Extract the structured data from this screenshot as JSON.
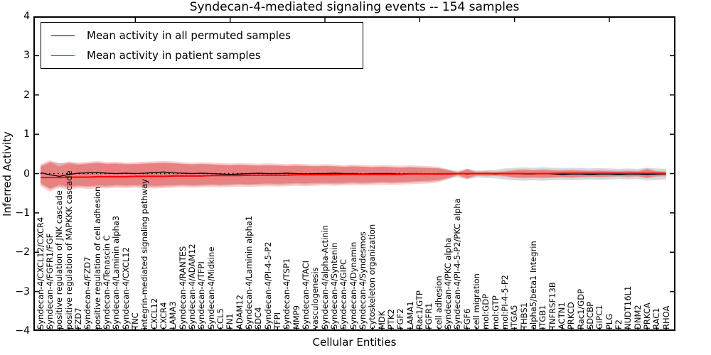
{
  "title": "Syndecan-4-mediated signaling events -- 154 samples",
  "axes": {
    "xlabel": "Cellular Entities",
    "ylabel": "Inferred Activity"
  },
  "legend": {
    "items": [
      {
        "label": "Mean activity in all permuted samples",
        "color": "#000000"
      },
      {
        "label": "Mean activity in patient samples",
        "color": "#ff0000"
      }
    ]
  },
  "colors": {
    "patient_line": "#ff0000",
    "permuted_line": "#000000",
    "patient_band": "#ff0000",
    "permuted_band": "#808080",
    "axes_frame": "#000000",
    "background": "#ffffff"
  },
  "chart_data": {
    "type": "line",
    "title": "Syndecan-4-mediated signaling events -- 154 samples",
    "xlabel": "Cellular Entities",
    "ylabel": "Inferred Activity",
    "ylim": [
      -4,
      4
    ],
    "yticks": [
      4,
      3,
      2,
      1,
      0,
      -1,
      -2,
      -3,
      -4
    ],
    "grid": false,
    "legend_position": "upper left",
    "zero_line": 0,
    "categories": [
      "Syndecan-4/CXCL12/CXCR4",
      "Syndecan-4/FGFR1/FGF",
      "positive regulation of JNK cascade",
      "positive regulation of MAPKKK cascade",
      "FZD7",
      "Syndecan-4/FZD7",
      "positive regulation of cell adhesion",
      "Syndecan-4/Tenascin C",
      "Syndecan-4/Laminin alpha3",
      "Syndecan-4/CXCL12",
      "TNC",
      "integrin-mediated signaling pathway",
      "CXCL12",
      "CXCR4",
      "LAMA3",
      "Syndecan-4/RANTES",
      "Syndecan-4/ADAM12",
      "Syndecan-4/TFPI",
      "Syndecan-4/Midkine",
      "CCL5",
      "FN1",
      "ADAM12",
      "Syndecan-4/Laminin alpha1",
      "SDC4",
      "Syndecan-4/PI-4-5-P2",
      "TFPI",
      "Syndecan-4/TSP1",
      "MMP9",
      "Syndecan-4/TACI",
      "vasculogenesis",
      "Syndecan-4/alpha-Actinin",
      "Syndecan-4/Syntenin",
      "Syndecan-4/GIPC",
      "Syndecan-4/Dynamin",
      "Syndecan-4/Syndesmos",
      "cytoskeleton organization",
      "MDK",
      "PTK2",
      "FGF2",
      "LAMA1",
      "Rac1/GTP",
      "FGFR1",
      "cell adhesion",
      "Syndecan-4/PKC alpha",
      "Syndecan-4/PI-4-5-P2/PKC alpha",
      "FGF6",
      "cell migration",
      "mol:GDP",
      "mol:GTP",
      "mol:PI-4-5-P2",
      "ITGA5",
      "THBS1",
      "alpha5/beta1 Integrin",
      "ITGB1",
      "TNFRSF13B",
      "ACTN1",
      "PRKCD",
      "Rac1/GDP",
      "SDCBP",
      "GIPC1",
      "PLG",
      "F2",
      "NUDT16L1",
      "DNM2",
      "PRKCA",
      "RAC1",
      "RHOA"
    ],
    "series": [
      {
        "name": "Mean activity in all permuted samples",
        "color": "#000000",
        "style": "solid",
        "width": 1.3,
        "values": [
          0.02,
          -0.03,
          -0.07,
          -0.02,
          0.01,
          0.02,
          0.03,
          0.01,
          0,
          0.01,
          0,
          0.01,
          0.03,
          0.04,
          0.02,
          0.01,
          0,
          0.01,
          0,
          -0.01,
          -0.02,
          -0.01,
          0,
          0.01,
          0,
          0,
          0.01,
          0,
          -0.01,
          0,
          0,
          0.01,
          0,
          0,
          -0.01,
          0,
          0,
          0,
          -0.01,
          0,
          0,
          -0.01,
          0,
          0,
          0,
          -0.01,
          0,
          0,
          -0.01,
          0,
          0,
          -0.01,
          -0.01,
          0,
          -0.01,
          -0.02,
          -0.01,
          -0.01,
          -0.02,
          -0.01,
          -0.01,
          -0.02,
          -0.01,
          -0.01,
          -0.02,
          -0.01,
          -0.01
        ]
      },
      {
        "name": "Mean activity in patient samples",
        "color": "#ff0000",
        "style": "solid",
        "width": 2,
        "values": [
          -0.1,
          -0.1,
          -0.1,
          -0.09,
          -0.09,
          -0.09,
          -0.08,
          -0.08,
          -0.08,
          -0.08,
          -0.07,
          -0.07,
          -0.07,
          -0.07,
          -0.06,
          -0.06,
          -0.06,
          -0.06,
          -0.05,
          -0.05,
          -0.05,
          -0.05,
          -0.04,
          -0.04,
          -0.04,
          -0.04,
          -0.04,
          -0.03,
          -0.03,
          -0.03,
          -0.03,
          -0.03,
          -0.02,
          -0.02,
          -0.02,
          -0.02,
          -0.02,
          -0.02,
          -0.02,
          -0.01,
          -0.01,
          -0.01,
          -0.01,
          -0.01,
          0,
          0,
          0,
          0,
          0,
          0,
          0,
          0,
          0,
          0,
          0,
          0.01,
          0.01,
          0.01,
          0.01,
          0.01,
          0.01,
          0.01,
          0.01,
          0.01,
          0.01,
          0.01,
          0
        ]
      }
    ],
    "bands": [
      {
        "name": "permuted-samples-range",
        "color": "#808080",
        "alpha": 0.3,
        "upper": [
          0.2,
          0.3,
          0.27,
          0.28,
          0.25,
          0.26,
          0.28,
          0.26,
          0.26,
          0.25,
          0.25,
          0.26,
          0.27,
          0.28,
          0.27,
          0.25,
          0.24,
          0.25,
          0.24,
          0.23,
          0.22,
          0.23,
          0.22,
          0.21,
          0.22,
          0.21,
          0.2,
          0.21,
          0.2,
          0.19,
          0.2,
          0.19,
          0.18,
          0.19,
          0.18,
          0.17,
          0.18,
          0.17,
          0.16,
          0.17,
          0.16,
          0.15,
          0.14,
          0.1,
          0.07,
          0.12,
          0.08,
          0.09,
          0.1,
          0.13,
          0.15,
          0.16,
          0.15,
          0.16,
          0.15,
          0.14,
          0.15,
          0.14,
          0.13,
          0.14,
          0.13,
          0.12,
          0.13,
          0.12,
          0.15,
          0.13,
          0.12
        ],
        "lower": [
          -0.28,
          -0.4,
          -0.33,
          -0.36,
          -0.33,
          -0.34,
          -0.33,
          -0.34,
          -0.32,
          -0.33,
          -0.32,
          -0.33,
          -0.34,
          -0.33,
          -0.32,
          -0.31,
          -0.32,
          -0.31,
          -0.3,
          -0.31,
          -0.3,
          -0.29,
          -0.3,
          -0.29,
          -0.28,
          -0.29,
          -0.28,
          -0.27,
          -0.28,
          -0.27,
          -0.26,
          -0.27,
          -0.26,
          -0.25,
          -0.26,
          -0.25,
          -0.24,
          -0.25,
          -0.24,
          -0.23,
          -0.22,
          -0.21,
          -0.19,
          -0.13,
          -0.09,
          -0.14,
          -0.1,
          -0.11,
          -0.12,
          -0.15,
          -0.17,
          -0.18,
          -0.17,
          -0.18,
          -0.17,
          -0.16,
          -0.17,
          -0.16,
          -0.15,
          -0.16,
          -0.15,
          -0.14,
          -0.15,
          -0.14,
          -0.17,
          -0.16,
          -0.15
        ]
      },
      {
        "name": "patient-samples-range-outer",
        "color": "#ff0000",
        "alpha": 0.2,
        "upper": [
          0.24,
          0.34,
          0.25,
          0.31,
          0.28,
          0.3,
          0.32,
          0.29,
          0.3,
          0.28,
          0.29,
          0.3,
          0.31,
          0.32,
          0.31,
          0.29,
          0.28,
          0.29,
          0.28,
          0.27,
          0.26,
          0.27,
          0.26,
          0.25,
          0.26,
          0.25,
          0.24,
          0.25,
          0.24,
          0.23,
          0.24,
          0.23,
          0.22,
          0.23,
          0.22,
          0.21,
          0.22,
          0.21,
          0.2,
          0.21,
          0.2,
          0.19,
          0.17,
          0.11,
          0.04,
          0.13,
          0.05,
          0.06,
          0.05,
          0.07,
          0.1,
          0.11,
          0.1,
          0.11,
          0.1,
          0.09,
          0.1,
          0.09,
          0.08,
          0.09,
          0.08,
          0.07,
          0.08,
          0.07,
          0.13,
          0.07,
          0.06
        ],
        "lower": [
          -0.32,
          -0.46,
          -0.36,
          -0.41,
          -0.37,
          -0.39,
          -0.37,
          -0.38,
          -0.36,
          -0.37,
          -0.36,
          -0.37,
          -0.38,
          -0.37,
          -0.36,
          -0.35,
          -0.36,
          -0.35,
          -0.34,
          -0.35,
          -0.34,
          -0.33,
          -0.34,
          -0.33,
          -0.32,
          -0.33,
          -0.32,
          -0.31,
          -0.32,
          -0.31,
          -0.3,
          -0.31,
          -0.3,
          -0.29,
          -0.3,
          -0.29,
          -0.28,
          -0.29,
          -0.28,
          -0.27,
          -0.26,
          -0.25,
          -0.22,
          -0.14,
          -0.05,
          -0.14,
          -0.06,
          -0.07,
          -0.06,
          -0.08,
          -0.11,
          -0.12,
          -0.11,
          -0.12,
          -0.11,
          -0.1,
          -0.11,
          -0.1,
          -0.09,
          -0.1,
          -0.09,
          -0.08,
          -0.09,
          -0.08,
          -0.12,
          -0.08,
          -0.07
        ]
      },
      {
        "name": "patient-samples-range-inner",
        "color": "#ff0000",
        "alpha": 0.25,
        "upper": [
          0.17,
          0.28,
          0.18,
          0.26,
          0.22,
          0.25,
          0.27,
          0.24,
          0.25,
          0.23,
          0.24,
          0.25,
          0.26,
          0.27,
          0.26,
          0.24,
          0.23,
          0.24,
          0.23,
          0.22,
          0.21,
          0.22,
          0.21,
          0.2,
          0.21,
          0.2,
          0.19,
          0.2,
          0.19,
          0.18,
          0.19,
          0.18,
          0.17,
          0.18,
          0.17,
          0.16,
          0.17,
          0.16,
          0.15,
          0.16,
          0.15,
          0.14,
          0.13,
          0.08,
          0.02,
          0.1,
          0.03,
          0.04,
          0.03,
          0.05,
          0.08,
          0.09,
          0.08,
          0.09,
          0.08,
          0.07,
          0.08,
          0.07,
          0.06,
          0.07,
          0.06,
          0.05,
          0.06,
          0.05,
          0.11,
          0.05,
          0.04
        ],
        "lower": [
          -0.24,
          -0.38,
          -0.28,
          -0.34,
          -0.3,
          -0.32,
          -0.3,
          -0.31,
          -0.29,
          -0.3,
          -0.29,
          -0.3,
          -0.31,
          -0.3,
          -0.29,
          -0.28,
          -0.29,
          -0.28,
          -0.27,
          -0.28,
          -0.27,
          -0.26,
          -0.27,
          -0.26,
          -0.25,
          -0.26,
          -0.25,
          -0.24,
          -0.25,
          -0.24,
          -0.23,
          -0.24,
          -0.23,
          -0.22,
          -0.23,
          -0.22,
          -0.21,
          -0.22,
          -0.21,
          -0.2,
          -0.19,
          -0.18,
          -0.16,
          -0.1,
          -0.03,
          -0.11,
          -0.04,
          -0.05,
          -0.04,
          -0.06,
          -0.09,
          -0.1,
          -0.09,
          -0.1,
          -0.09,
          -0.08,
          -0.09,
          -0.08,
          -0.07,
          -0.08,
          -0.07,
          -0.06,
          -0.07,
          -0.06,
          -0.1,
          -0.06,
          -0.05
        ]
      }
    ]
  }
}
